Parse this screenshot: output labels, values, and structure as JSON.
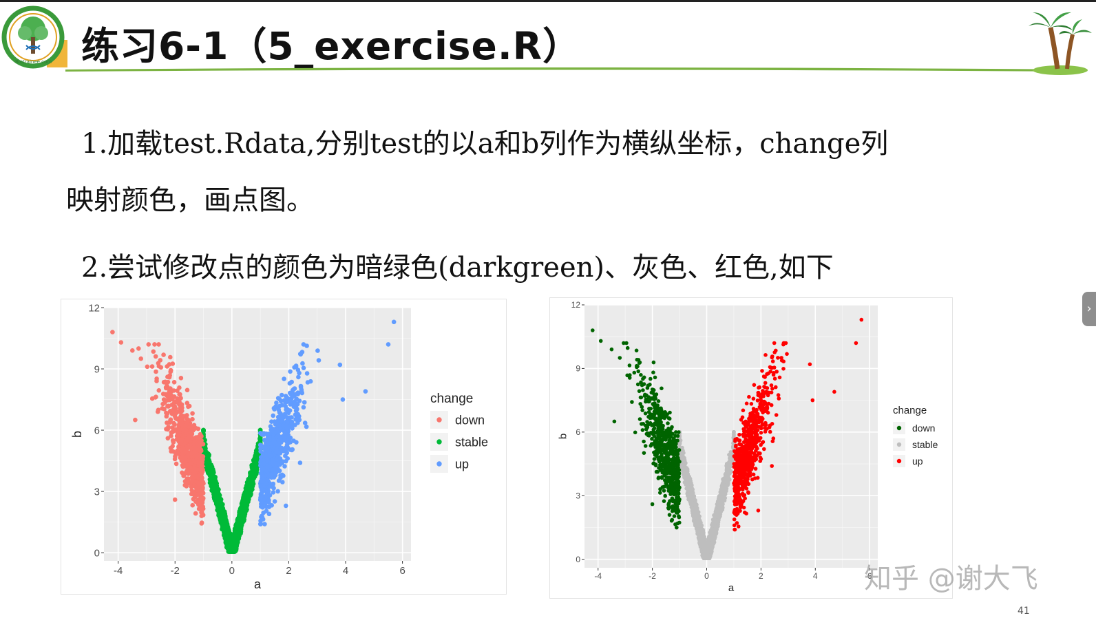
{
  "slide": {
    "title": "练习6-1（5_exercise.R）",
    "task1_line1": "1.加载test.Rdata,分别test的以a和b列作为横纵坐标，change列",
    "task1_line2": "映射颜色，画点图。",
    "task2": "2.尝试修改点的颜色为暗绿色(darkgreen)、灰色、红色,如下",
    "logo_text": "Biotrainee.com",
    "side_tab_icon": "chevron-right-icon",
    "side_tab_glyph": "›",
    "watermark": "知乎 @谢大飞",
    "page_number": "41"
  },
  "chart_data": [
    {
      "type": "scatter",
      "xlabel": "a",
      "ylabel": "b",
      "xlim": [
        -4.5,
        6.3
      ],
      "ylim": [
        -0.4,
        12
      ],
      "x_ticks": [
        -4,
        -2,
        0,
        2,
        4,
        6
      ],
      "y_ticks": [
        0,
        3,
        6,
        9,
        12
      ],
      "grid": true,
      "legend_title": "change",
      "legend_position": "right",
      "series": [
        {
          "name": "down",
          "color": "#f8766d"
        },
        {
          "name": "stable",
          "color": "#00ba38"
        },
        {
          "name": "up",
          "color": "#619cff"
        }
      ],
      "outlier_points": [
        {
          "x": -4.2,
          "y": 10.8,
          "change": "down"
        },
        {
          "x": -3.9,
          "y": 10.3,
          "change": "down"
        },
        {
          "x": -3.5,
          "y": 9.9,
          "change": "down"
        },
        {
          "x": -3.2,
          "y": 9.5,
          "change": "down"
        },
        {
          "x": -3.4,
          "y": 6.5,
          "change": "down"
        },
        {
          "x": -2.0,
          "y": 2.6,
          "change": "down"
        },
        {
          "x": 5.7,
          "y": 11.3,
          "change": "up"
        },
        {
          "x": 5.5,
          "y": 10.2,
          "change": "up"
        },
        {
          "x": 4.7,
          "y": 7.9,
          "change": "up"
        },
        {
          "x": 3.8,
          "y": 9.2,
          "change": "up"
        },
        {
          "x": 3.9,
          "y": 7.5,
          "change": "up"
        },
        {
          "x": 2.4,
          "y": 4.4,
          "change": "up"
        },
        {
          "x": 1.9,
          "y": 2.3,
          "change": "up"
        }
      ]
    },
    {
      "type": "scatter",
      "xlabel": "a",
      "ylabel": "b",
      "xlim": [
        -4.5,
        6.3
      ],
      "ylim": [
        -0.4,
        12
      ],
      "x_ticks": [
        -4,
        -2,
        0,
        2,
        4,
        6
      ],
      "y_ticks": [
        0,
        3,
        6,
        9,
        12
      ],
      "grid": true,
      "legend_title": "change",
      "legend_position": "right",
      "series": [
        {
          "name": "down",
          "color": "#006400"
        },
        {
          "name": "stable",
          "color": "#bebebe"
        },
        {
          "name": "up",
          "color": "#ff0000"
        }
      ],
      "outlier_points": [
        {
          "x": -4.2,
          "y": 10.8,
          "change": "down"
        },
        {
          "x": -3.9,
          "y": 10.3,
          "change": "down"
        },
        {
          "x": -3.5,
          "y": 9.9,
          "change": "down"
        },
        {
          "x": -3.2,
          "y": 9.5,
          "change": "down"
        },
        {
          "x": -3.4,
          "y": 6.5,
          "change": "down"
        },
        {
          "x": -2.0,
          "y": 2.6,
          "change": "down"
        },
        {
          "x": 5.7,
          "y": 11.3,
          "change": "up"
        },
        {
          "x": 5.5,
          "y": 10.2,
          "change": "up"
        },
        {
          "x": 4.7,
          "y": 7.9,
          "change": "up"
        },
        {
          "x": 3.8,
          "y": 9.2,
          "change": "up"
        },
        {
          "x": 3.9,
          "y": 7.5,
          "change": "up"
        },
        {
          "x": 2.4,
          "y": 4.4,
          "change": "up"
        },
        {
          "x": 1.9,
          "y": 2.3,
          "change": "up"
        }
      ]
    }
  ]
}
